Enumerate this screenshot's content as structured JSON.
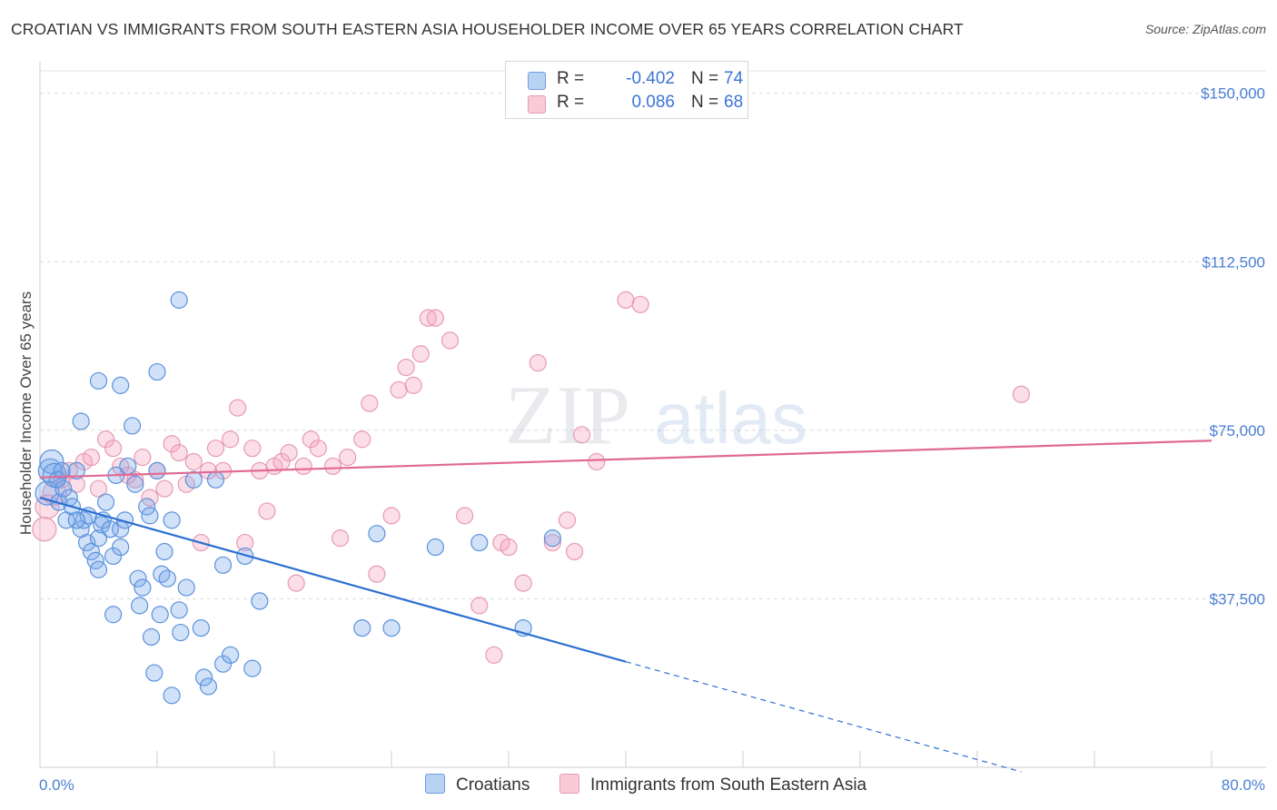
{
  "title": "CROATIAN VS IMMIGRANTS FROM SOUTH EASTERN ASIA HOUSEHOLDER INCOME OVER 65 YEARS CORRELATION CHART",
  "source": "Source: ZipAtlas.com",
  "watermark": {
    "zip": "ZIP",
    "atlas": "atlas"
  },
  "stats": {
    "r_label": "R =",
    "n_label": "N =",
    "rows": [
      {
        "name": "Croatians",
        "r": "-0.402",
        "n": "74",
        "color": "#a8c8f0"
      },
      {
        "name": "Immigrants from South Eastern Asia",
        "r": "0.086",
        "n": "68",
        "color": "#f5b8cc"
      }
    ]
  },
  "legend": [
    "Croatians",
    "Immigrants from South Eastern Asia"
  ],
  "chart_data": {
    "type": "scatter",
    "ylabel": "Householder Income Over 65 years",
    "x_tick_labels": [
      "0.0%",
      "80.0%"
    ],
    "y_tick_labels": [
      "$150,000",
      "$112,500",
      "$75,000",
      "$37,500"
    ],
    "y_ticks": [
      150000,
      112500,
      75000,
      37500
    ],
    "xlim": [
      0,
      80
    ],
    "ylim": [
      0,
      155000
    ],
    "grid": true,
    "colors": {
      "croatians_fill": "rgba(120,170,235,0.35)",
      "croatians_stroke": "#5b92dc",
      "croatians_line": "#2c6fd1",
      "immigrants_fill": "rgba(245,160,190,0.35)",
      "immigrants_stroke": "#e69ab4",
      "immigrants_line": "#e06a93"
    },
    "series": [
      {
        "name": "Croatians",
        "trend": {
          "x0": 0,
          "y0": 60000,
          "x1": 40,
          "y1": 23500,
          "dash_to_x": 67,
          "dash_to_y": -1000
        },
        "points": [
          [
            0.5,
            61000
          ],
          [
            0.7,
            66000
          ],
          [
            0.8,
            68000
          ],
          [
            1.0,
            65000
          ],
          [
            1.2,
            64000
          ],
          [
            1.3,
            59000
          ],
          [
            1.5,
            66000
          ],
          [
            1.6,
            62000
          ],
          [
            1.8,
            55000
          ],
          [
            2.0,
            60000
          ],
          [
            2.2,
            58000
          ],
          [
            2.5,
            66000
          ],
          [
            2.8,
            77000
          ],
          [
            2.8,
            53000
          ],
          [
            3.0,
            55000
          ],
          [
            3.2,
            50000
          ],
          [
            3.3,
            56000
          ],
          [
            3.5,
            48000
          ],
          [
            3.8,
            46000
          ],
          [
            4.0,
            51000
          ],
          [
            4.0,
            44000
          ],
          [
            4.2,
            54000
          ],
          [
            4.3,
            55000
          ],
          [
            4.5,
            59000
          ],
          [
            4.8,
            53000
          ],
          [
            5.0,
            47000
          ],
          [
            5.2,
            65000
          ],
          [
            5.5,
            53000
          ],
          [
            5.5,
            49000
          ],
          [
            5.8,
            55000
          ],
          [
            6.0,
            67000
          ],
          [
            6.3,
            76000
          ],
          [
            6.5,
            63000
          ],
          [
            6.7,
            42000
          ],
          [
            6.8,
            36000
          ],
          [
            7.0,
            40000
          ],
          [
            7.3,
            58000
          ],
          [
            7.5,
            56000
          ],
          [
            7.6,
            29000
          ],
          [
            7.8,
            21000
          ],
          [
            8.0,
            66000
          ],
          [
            8.2,
            34000
          ],
          [
            8.3,
            43000
          ],
          [
            8.5,
            48000
          ],
          [
            8.7,
            42000
          ],
          [
            9.0,
            55000
          ],
          [
            9.5,
            35000
          ],
          [
            9.6,
            30000
          ],
          [
            10.0,
            40000
          ],
          [
            10.5,
            64000
          ],
          [
            11.0,
            31000
          ],
          [
            11.2,
            20000
          ],
          [
            11.5,
            18000
          ],
          [
            12.0,
            64000
          ],
          [
            12.5,
            23000
          ],
          [
            13.0,
            25000
          ],
          [
            14.0,
            47000
          ],
          [
            15.0,
            37000
          ],
          [
            22.0,
            31000
          ],
          [
            24.0,
            31000
          ],
          [
            27.0,
            49000
          ],
          [
            30.0,
            50000
          ],
          [
            33.0,
            31000
          ],
          [
            35.0,
            51000
          ],
          [
            4.0,
            86000
          ],
          [
            5.5,
            85000
          ],
          [
            8.0,
            88000
          ],
          [
            9.5,
            104000
          ],
          [
            14.5,
            22000
          ],
          [
            23.0,
            52000
          ],
          [
            5.0,
            34000
          ],
          [
            12.5,
            45000
          ],
          [
            9.0,
            16000
          ],
          [
            2.5,
            55000
          ]
        ]
      },
      {
        "name": "Immigrants from South Eastern Asia",
        "trend": {
          "x0": 0,
          "y0": 64500,
          "x1": 80,
          "y1": 72700
        },
        "points": [
          [
            0.3,
            53000
          ],
          [
            0.5,
            58000
          ],
          [
            1.0,
            61000
          ],
          [
            1.5,
            64000
          ],
          [
            2.0,
            66000
          ],
          [
            2.5,
            63000
          ],
          [
            3.0,
            68000
          ],
          [
            3.5,
            69000
          ],
          [
            4.0,
            62000
          ],
          [
            4.5,
            73000
          ],
          [
            5.0,
            71000
          ],
          [
            5.5,
            67000
          ],
          [
            6.0,
            65000
          ],
          [
            6.5,
            64000
          ],
          [
            7.0,
            69000
          ],
          [
            7.5,
            60000
          ],
          [
            8.0,
            66000
          ],
          [
            8.5,
            62000
          ],
          [
            9.0,
            72000
          ],
          [
            9.5,
            70000
          ],
          [
            10.0,
            63000
          ],
          [
            10.5,
            68000
          ],
          [
            11.0,
            50000
          ],
          [
            11.5,
            66000
          ],
          [
            12.0,
            71000
          ],
          [
            12.5,
            66000
          ],
          [
            13.0,
            73000
          ],
          [
            13.5,
            80000
          ],
          [
            14.0,
            50000
          ],
          [
            14.5,
            71000
          ],
          [
            15.0,
            66000
          ],
          [
            15.5,
            57000
          ],
          [
            16.0,
            67000
          ],
          [
            16.5,
            68000
          ],
          [
            17.0,
            70000
          ],
          [
            17.5,
            41000
          ],
          [
            18.0,
            67000
          ],
          [
            18.5,
            73000
          ],
          [
            19.0,
            71000
          ],
          [
            20.0,
            67000
          ],
          [
            20.5,
            51000
          ],
          [
            21.0,
            69000
          ],
          [
            22.0,
            73000
          ],
          [
            22.5,
            81000
          ],
          [
            23.0,
            43000
          ],
          [
            24.0,
            56000
          ],
          [
            24.5,
            84000
          ],
          [
            25.0,
            89000
          ],
          [
            25.5,
            85000
          ],
          [
            26.0,
            92000
          ],
          [
            26.5,
            100000
          ],
          [
            27.0,
            100000
          ],
          [
            28.0,
            95000
          ],
          [
            29.0,
            56000
          ],
          [
            30.0,
            36000
          ],
          [
            31.0,
            25000
          ],
          [
            31.5,
            50000
          ],
          [
            32.0,
            49000
          ],
          [
            33.0,
            41000
          ],
          [
            34.0,
            90000
          ],
          [
            35.0,
            50000
          ],
          [
            36.0,
            55000
          ],
          [
            36.5,
            48000
          ],
          [
            37.0,
            74000
          ],
          [
            38.0,
            68000
          ],
          [
            40.0,
            104000
          ],
          [
            41.0,
            103000
          ],
          [
            67.0,
            83000
          ]
        ]
      }
    ]
  }
}
